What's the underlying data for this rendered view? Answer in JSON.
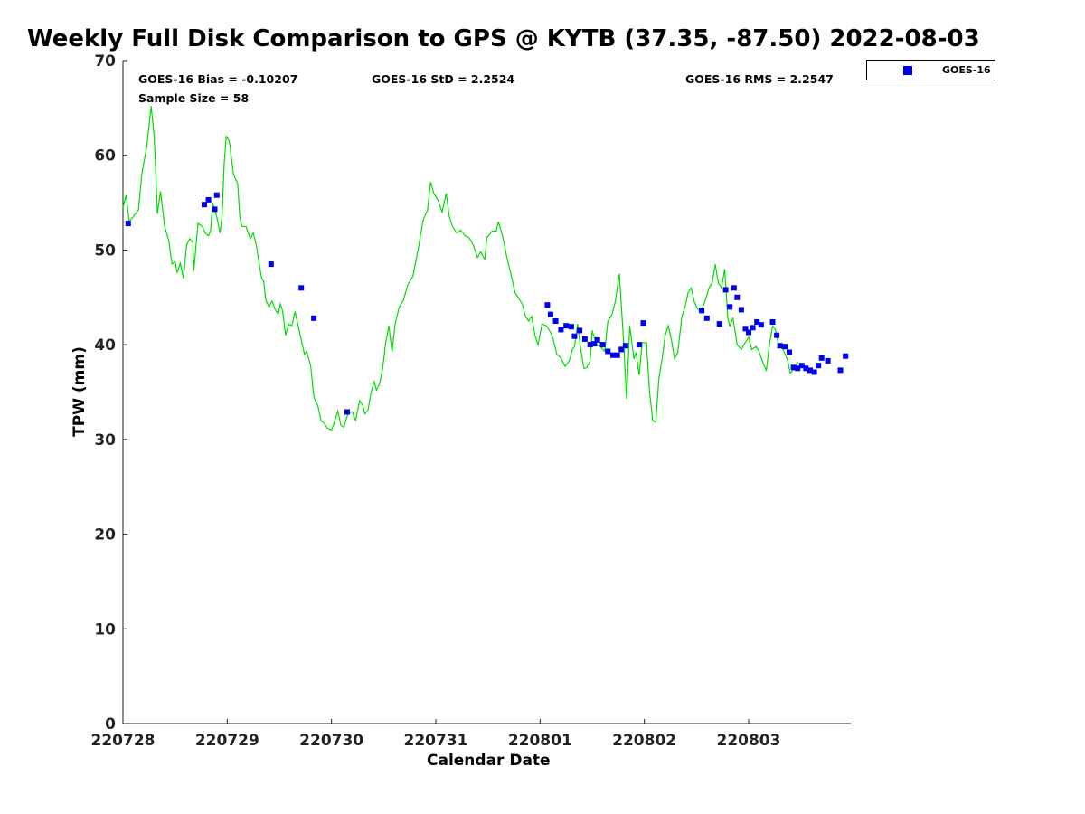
{
  "chart_data": {
    "type": "line",
    "title": "Weekly Full Disk Comparison to GPS @ KYTB (37.35, -87.50) 2022-08-03",
    "xlabel": "Calendar Date",
    "ylabel": "TPW (mm)",
    "xlim": [
      0,
      6.98
    ],
    "ylim": [
      0,
      70
    ],
    "x_ticks": [
      0,
      1,
      2,
      3,
      4,
      5,
      6
    ],
    "x_tick_labels": [
      "220728",
      "220729",
      "220730",
      "220731",
      "220801",
      "220802",
      "220803"
    ],
    "y_ticks": [
      0,
      10,
      20,
      30,
      40,
      50,
      60,
      70
    ],
    "y_tick_labels": [
      "0",
      "10",
      "20",
      "30",
      "40",
      "50",
      "60",
      "70"
    ],
    "grid": false,
    "stats": {
      "bias": "GOES-16 Bias = -0.10207",
      "std": "GOES-16 StD = 2.2524",
      "rms": "GOES-16 RMS = 2.2547",
      "sample": "Sample Size = 58"
    },
    "legend": {
      "position": "top-right-outside",
      "entries": [
        "GOES-16"
      ]
    },
    "colors": {
      "gps_line": "#00dd00",
      "goes_marker": "#0000ee"
    },
    "series": [
      {
        "name": "GPS",
        "style": "line",
        "points": [
          [
            0.0,
            54.5
          ],
          [
            0.03,
            55.8
          ],
          [
            0.06,
            53.0
          ],
          [
            0.1,
            53.5
          ],
          [
            0.15,
            54.3
          ],
          [
            0.18,
            58.0
          ],
          [
            0.23,
            61.0
          ],
          [
            0.27,
            65.2
          ],
          [
            0.3,
            62.0
          ],
          [
            0.33,
            53.8
          ],
          [
            0.36,
            56.2
          ],
          [
            0.4,
            52.5
          ],
          [
            0.44,
            51.0
          ],
          [
            0.47,
            48.5
          ],
          [
            0.5,
            48.8
          ],
          [
            0.52,
            47.6
          ],
          [
            0.55,
            48.6
          ],
          [
            0.58,
            47.0
          ],
          [
            0.61,
            50.5
          ],
          [
            0.64,
            51.2
          ],
          [
            0.67,
            50.8
          ],
          [
            0.68,
            47.8
          ],
          [
            0.72,
            52.8
          ],
          [
            0.76,
            52.5
          ],
          [
            0.79,
            51.8
          ],
          [
            0.82,
            51.5
          ],
          [
            0.84,
            52.0
          ],
          [
            0.86,
            55.0
          ],
          [
            0.9,
            53.5
          ],
          [
            0.93,
            51.8
          ],
          [
            0.95,
            53.5
          ],
          [
            0.97,
            59.0
          ],
          [
            0.99,
            62.0
          ],
          [
            1.02,
            61.5
          ],
          [
            1.06,
            58.0
          ],
          [
            1.1,
            57.0
          ],
          [
            1.12,
            53.5
          ],
          [
            1.14,
            52.5
          ],
          [
            1.18,
            52.5
          ],
          [
            1.22,
            51.2
          ],
          [
            1.25,
            51.8
          ],
          [
            1.28,
            50.5
          ],
          [
            1.3,
            49.0
          ],
          [
            1.33,
            47.0
          ],
          [
            1.35,
            46.7
          ],
          [
            1.37,
            44.7
          ],
          [
            1.4,
            44.0
          ],
          [
            1.43,
            44.6
          ],
          [
            1.46,
            43.7
          ],
          [
            1.49,
            43.2
          ],
          [
            1.51,
            44.3
          ],
          [
            1.53,
            43.6
          ],
          [
            1.56,
            41.0
          ],
          [
            1.59,
            42.2
          ],
          [
            1.62,
            42.0
          ],
          [
            1.65,
            43.5
          ],
          [
            1.68,
            42.0
          ],
          [
            1.71,
            40.5
          ],
          [
            1.74,
            39.0
          ],
          [
            1.76,
            39.3
          ],
          [
            1.8,
            37.8
          ],
          [
            1.83,
            34.5
          ],
          [
            1.87,
            33.5
          ],
          [
            1.9,
            32.0
          ],
          [
            1.93,
            31.7
          ],
          [
            1.96,
            31.2
          ],
          [
            2.0,
            31.0
          ],
          [
            2.03,
            31.9
          ],
          [
            2.06,
            33.0
          ],
          [
            2.09,
            31.5
          ],
          [
            2.12,
            31.3
          ],
          [
            2.16,
            32.8
          ],
          [
            2.2,
            32.9
          ],
          [
            2.23,
            32.0
          ],
          [
            2.27,
            34.1
          ],
          [
            2.3,
            33.6
          ],
          [
            2.32,
            32.7
          ],
          [
            2.35,
            33.1
          ],
          [
            2.38,
            35.0
          ],
          [
            2.41,
            36.1
          ],
          [
            2.43,
            35.2
          ],
          [
            2.46,
            35.8
          ],
          [
            2.49,
            37.5
          ],
          [
            2.52,
            40.2
          ],
          [
            2.55,
            42.0
          ],
          [
            2.58,
            39.2
          ],
          [
            2.61,
            42.2
          ],
          [
            2.65,
            44.0
          ],
          [
            2.69,
            44.7
          ],
          [
            2.73,
            46.3
          ],
          [
            2.78,
            47.2
          ],
          [
            2.83,
            50.0
          ],
          [
            2.88,
            53.2
          ],
          [
            2.92,
            54.2
          ],
          [
            2.95,
            57.2
          ],
          [
            2.98,
            56.0
          ],
          [
            3.02,
            55.3
          ],
          [
            3.06,
            54.0
          ],
          [
            3.1,
            56.0
          ],
          [
            3.13,
            53.5
          ],
          [
            3.16,
            52.5
          ],
          [
            3.2,
            51.8
          ],
          [
            3.24,
            52.1
          ],
          [
            3.28,
            51.5
          ],
          [
            3.32,
            51.3
          ],
          [
            3.36,
            50.5
          ],
          [
            3.4,
            49.2
          ],
          [
            3.43,
            49.8
          ],
          [
            3.47,
            49.0
          ],
          [
            3.49,
            51.3
          ],
          [
            3.54,
            52.0
          ],
          [
            3.58,
            52.0
          ],
          [
            3.6,
            53.0
          ],
          [
            3.64,
            51.5
          ],
          [
            3.68,
            49.3
          ],
          [
            3.72,
            47.5
          ],
          [
            3.76,
            45.5
          ],
          [
            3.8,
            44.8
          ],
          [
            3.83,
            44.3
          ],
          [
            3.86,
            43.0
          ],
          [
            3.89,
            42.5
          ],
          [
            3.92,
            43.0
          ],
          [
            3.95,
            41.0
          ],
          [
            3.98,
            40.0
          ],
          [
            4.02,
            42.2
          ],
          [
            4.06,
            42.0
          ],
          [
            4.09,
            41.5
          ],
          [
            4.12,
            40.8
          ],
          [
            4.16,
            39.0
          ],
          [
            4.2,
            38.6
          ],
          [
            4.24,
            37.7
          ],
          [
            4.28,
            38.3
          ],
          [
            4.31,
            39.5
          ],
          [
            4.33,
            39.8
          ],
          [
            4.36,
            42.2
          ],
          [
            4.39,
            39.5
          ],
          [
            4.42,
            37.5
          ],
          [
            4.45,
            37.6
          ],
          [
            4.48,
            38.3
          ],
          [
            4.5,
            41.5
          ],
          [
            4.54,
            40.0
          ],
          [
            4.58,
            39.8
          ],
          [
            4.62,
            39.3
          ],
          [
            4.65,
            42.5
          ],
          [
            4.69,
            43.2
          ],
          [
            4.72,
            44.5
          ],
          [
            4.76,
            47.5
          ],
          [
            4.8,
            40.5
          ],
          [
            4.83,
            34.3
          ],
          [
            4.86,
            42.0
          ],
          [
            4.9,
            38.5
          ],
          [
            4.92,
            39.2
          ],
          [
            4.95,
            36.8
          ],
          [
            4.98,
            40.2
          ],
          [
            5.02,
            40.2
          ],
          [
            5.05,
            35.0
          ],
          [
            5.08,
            32.0
          ],
          [
            5.11,
            31.8
          ],
          [
            5.14,
            36.5
          ],
          [
            5.17,
            38.5
          ],
          [
            5.2,
            41.0
          ],
          [
            5.23,
            42.0
          ],
          [
            5.26,
            40.5
          ],
          [
            5.29,
            38.5
          ],
          [
            5.32,
            39.2
          ],
          [
            5.36,
            43.0
          ],
          [
            5.39,
            44.0
          ],
          [
            5.42,
            45.5
          ],
          [
            5.45,
            46.0
          ],
          [
            5.48,
            44.5
          ],
          [
            5.51,
            43.8
          ],
          [
            5.54,
            43.5
          ],
          [
            5.58,
            44.5
          ],
          [
            5.62,
            46.0
          ],
          [
            5.65,
            46.5
          ],
          [
            5.68,
            48.5
          ],
          [
            5.71,
            46.5
          ],
          [
            5.74,
            46.0
          ],
          [
            5.77,
            48.0
          ],
          [
            5.8,
            42.8
          ],
          [
            5.82,
            42.0
          ],
          [
            5.85,
            42.8
          ],
          [
            5.89,
            40.0
          ],
          [
            5.93,
            39.5
          ],
          [
            5.97,
            40.3
          ],
          [
            6.0,
            40.8
          ],
          [
            6.03,
            39.5
          ],
          [
            6.07,
            39.8
          ],
          [
            6.1,
            39.3
          ],
          [
            6.14,
            38.0
          ],
          [
            6.17,
            37.3
          ],
          [
            6.2,
            40.0
          ],
          [
            6.23,
            42.0
          ],
          [
            6.26,
            41.5
          ],
          [
            6.29,
            39.8
          ],
          [
            6.33,
            39.5
          ],
          [
            6.37,
            38.5
          ],
          [
            6.4,
            37.0
          ],
          [
            6.44,
            37.5
          ],
          [
            6.47,
            38.2
          ]
        ]
      },
      {
        "name": "GOES-16",
        "style": "marker",
        "points": [
          [
            0.05,
            52.8
          ],
          [
            0.78,
            54.8
          ],
          [
            0.82,
            55.3
          ],
          [
            0.88,
            54.3
          ],
          [
            0.9,
            55.8
          ],
          [
            1.42,
            48.5
          ],
          [
            1.71,
            46.0
          ],
          [
            1.83,
            42.8
          ],
          [
            2.15,
            32.9
          ],
          [
            4.07,
            44.2
          ],
          [
            4.1,
            43.2
          ],
          [
            4.15,
            42.5
          ],
          [
            4.2,
            41.6
          ],
          [
            4.25,
            42.0
          ],
          [
            4.3,
            41.9
          ],
          [
            4.33,
            40.9
          ],
          [
            4.38,
            41.5
          ],
          [
            4.43,
            40.6
          ],
          [
            4.48,
            40.0
          ],
          [
            4.52,
            40.1
          ],
          [
            4.55,
            40.5
          ],
          [
            4.6,
            40.0
          ],
          [
            4.65,
            39.3
          ],
          [
            4.7,
            38.9
          ],
          [
            4.74,
            38.9
          ],
          [
            4.78,
            39.5
          ],
          [
            4.82,
            39.9
          ],
          [
            4.95,
            40.0
          ],
          [
            4.99,
            42.3
          ],
          [
            5.55,
            43.6
          ],
          [
            5.6,
            42.8
          ],
          [
            5.72,
            42.2
          ],
          [
            5.78,
            45.8
          ],
          [
            5.82,
            44.0
          ],
          [
            5.86,
            46.0
          ],
          [
            5.89,
            45.0
          ],
          [
            5.93,
            43.7
          ],
          [
            5.97,
            41.7
          ],
          [
            6.0,
            41.3
          ],
          [
            6.04,
            41.8
          ],
          [
            6.08,
            42.4
          ],
          [
            6.12,
            42.1
          ],
          [
            6.23,
            42.4
          ],
          [
            6.27,
            41.0
          ],
          [
            6.3,
            39.9
          ],
          [
            6.35,
            39.8
          ],
          [
            6.39,
            39.2
          ],
          [
            6.43,
            37.6
          ],
          [
            6.47,
            37.5
          ],
          [
            6.51,
            37.8
          ],
          [
            6.55,
            37.5
          ],
          [
            6.59,
            37.3
          ],
          [
            6.63,
            37.1
          ],
          [
            6.67,
            37.8
          ],
          [
            6.7,
            38.6
          ],
          [
            6.76,
            38.3
          ],
          [
            6.88,
            37.3
          ],
          [
            6.93,
            38.8
          ]
        ]
      }
    ]
  }
}
